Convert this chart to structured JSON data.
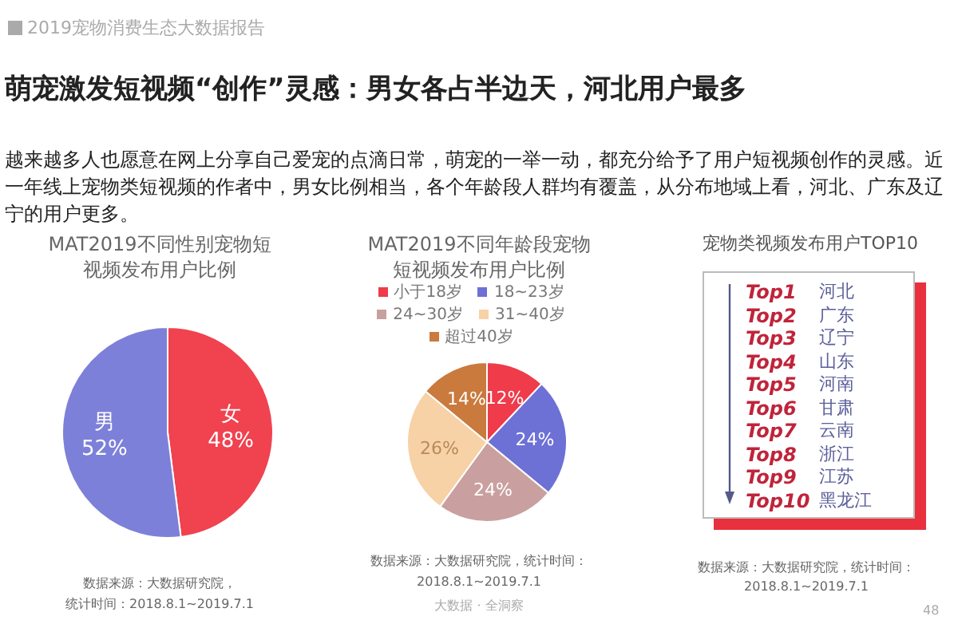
{
  "chart_data": [
    {
      "type": "pie",
      "title": "MAT2019不同性别宠物短视频发布用户比例",
      "categories": [
        "女",
        "男"
      ],
      "values": [
        48,
        52
      ],
      "value_labels": [
        "48%",
        "52%"
      ],
      "colors": [
        "#f0424f",
        "#7d80d8"
      ],
      "data_labels": true,
      "legend": false,
      "annotations": [
        "2019宠物消费生态大数据报告",
        "萌宠激发短视频“创作”灵感：男女各占半边天，河北用户最多",
        "越来越多人也愿意在网上分享自己爱宠的点滴日常，萌宠的一举一动，都充分给予了用户短视频创作的灵感。近一年线上宠物类短视频的作者中，男女比例相当，各个年龄段人群均有覆盖，从分布地域上看，河北、广东及辽宁的用户更多。",
        "数据来源：大数据研究院，",
        "统计时间：2018.8.1~2019.7.1"
      ]
    },
    {
      "type": "pie",
      "title": "MAT2019不同年龄段宠物短视频发布用户比例",
      "categories": [
        "小于18岁",
        "18~23岁",
        "24~30岁",
        "31~40岁",
        "超过40岁"
      ],
      "values": [
        12,
        24,
        24,
        26,
        14
      ],
      "value_labels": [
        "12%",
        "24%",
        "24%",
        "26%",
        "14%"
      ],
      "colors": [
        "#ef3b4a",
        "#6d70d5",
        "#c9a09f",
        "#f7d2a6",
        "#c97a3c"
      ],
      "data_labels": true,
      "legend": "top",
      "annotations": [
        "数据来源：大数据研究院，统计时间：2018.8.1~2019.7.1",
        "大数据 · 全洞察"
      ]
    },
    {
      "type": "other",
      "title": "宠物类视频发布用户TOP10",
      "categories": [
        "河北",
        "广东",
        "辽宁",
        "山东",
        "河南",
        "甘肃",
        "云南",
        "浙江",
        "江苏",
        "黑龙江"
      ],
      "annotations": [
        "Top1",
        "Top2",
        "Top3",
        "Top4",
        "Top5",
        "Top6",
        "Top7",
        "Top8",
        "Top9",
        "Top10",
        "数据来源：大数据研究院，统计时间：2018.8.1~2019.7.1",
        "48"
      ]
    }
  ]
}
